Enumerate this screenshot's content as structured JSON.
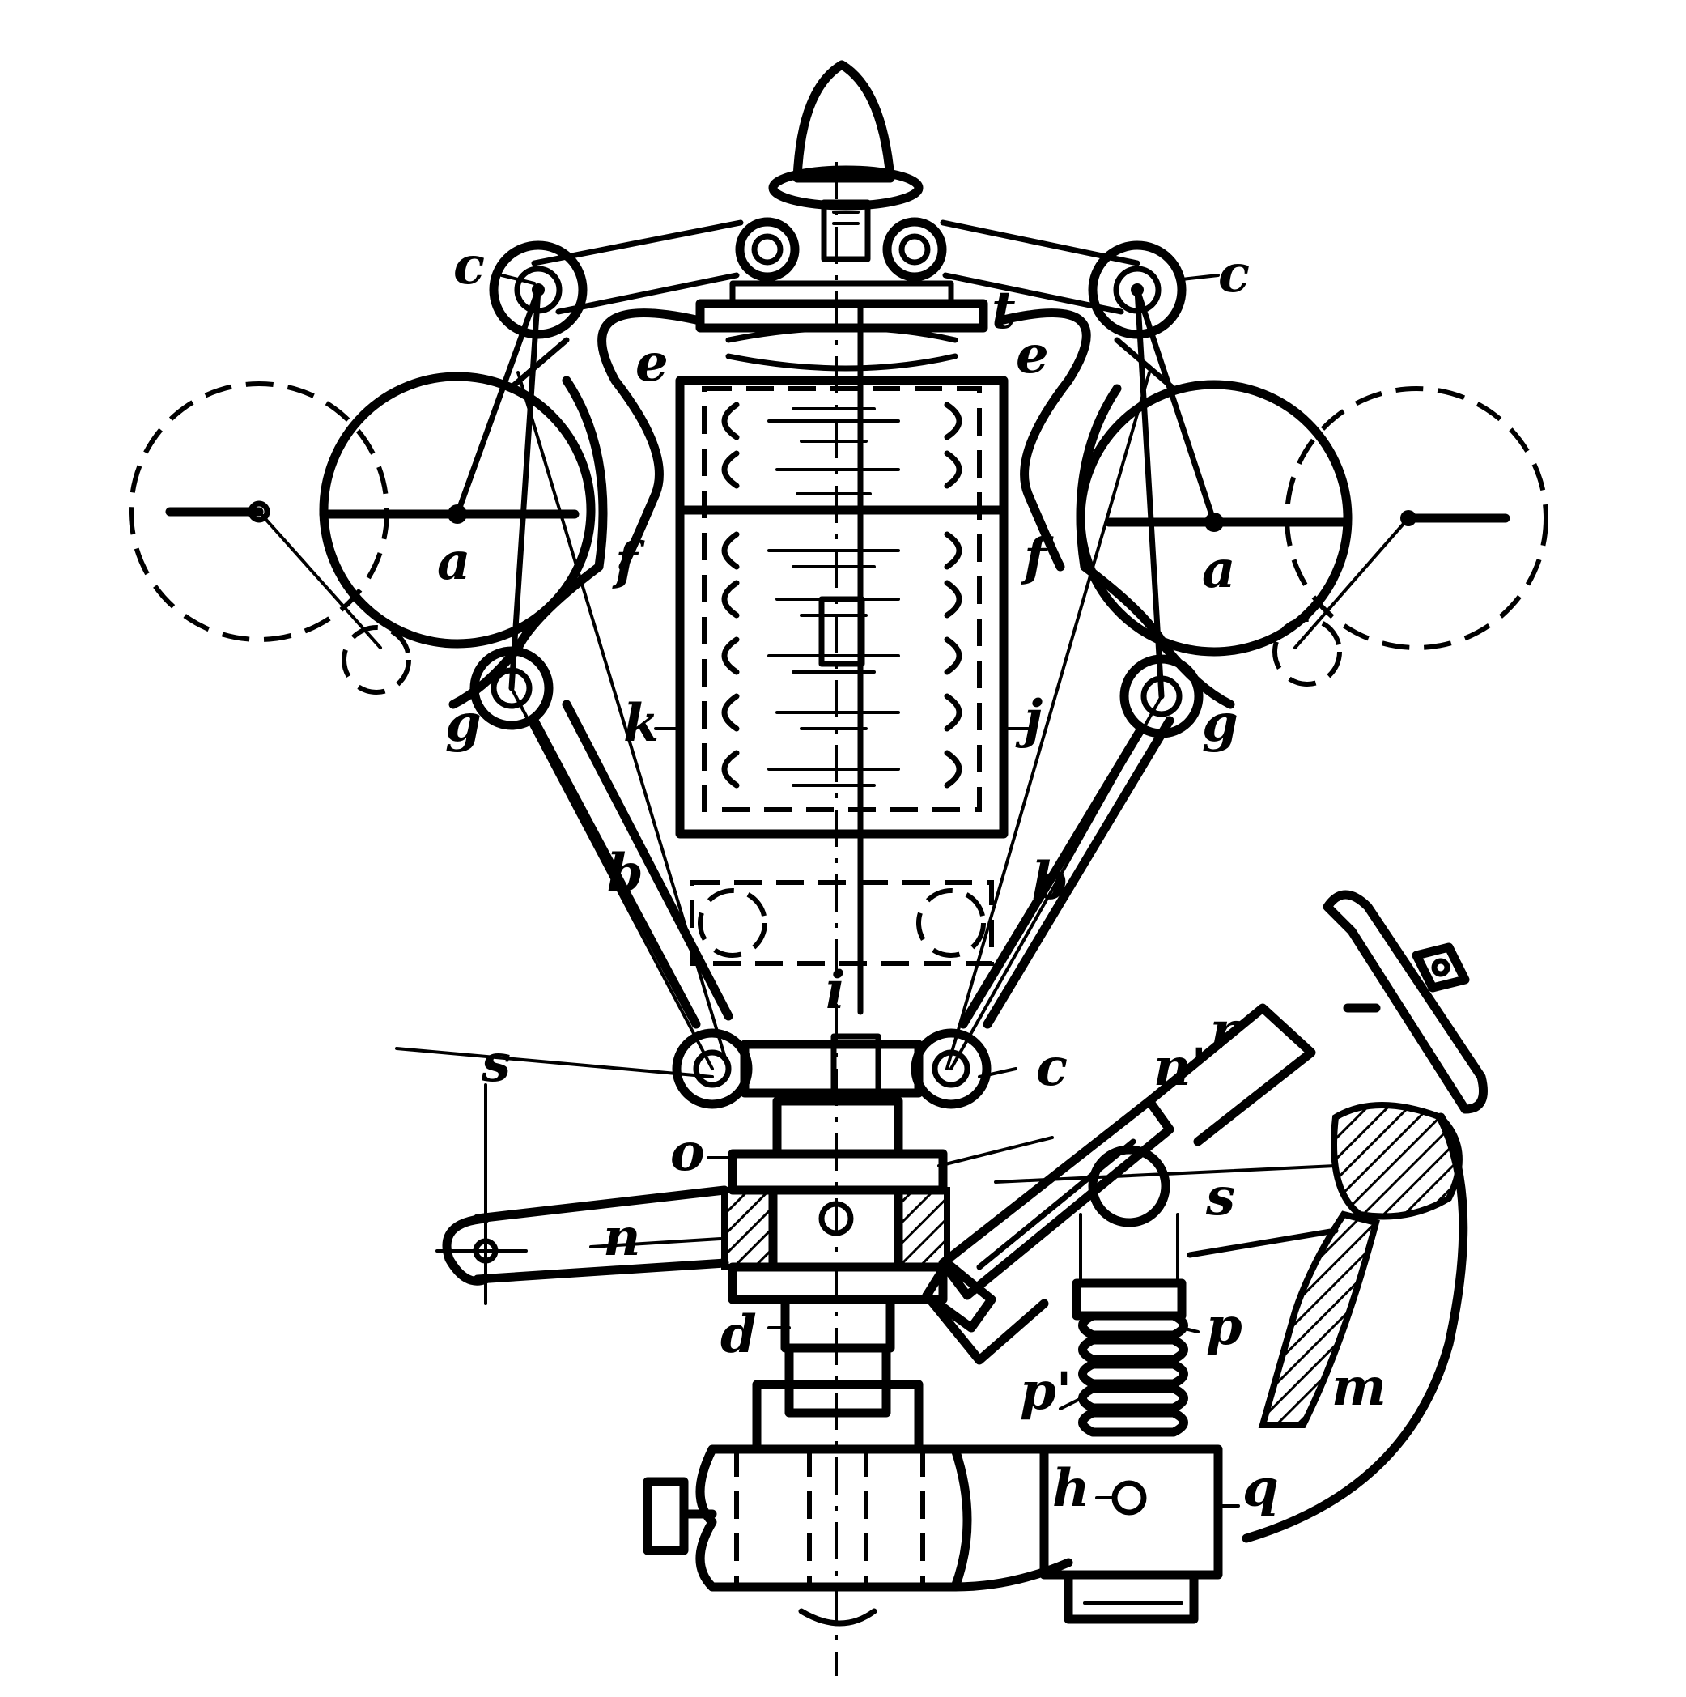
{
  "figure": {
    "labels": {
      "c_top_left": "c",
      "c_top_right": "c",
      "c_bottom_right": "c",
      "e_left": "e",
      "e_right": "e",
      "t_top": "t",
      "f_left": "f",
      "f_right": "f",
      "a_left": "a",
      "a_right": "a",
      "g_left": "g",
      "g_right": "g",
      "k": "k",
      "j": "j",
      "b_left": "b",
      "b_right": "b",
      "i": "i",
      "s_top": "s",
      "r": "r",
      "n_prime": "n'",
      "o": "o",
      "n": "n",
      "s": "s",
      "d": "d",
      "p": "p",
      "p_prime": "p'",
      "m": "m",
      "h": "h",
      "q": "q"
    }
  }
}
